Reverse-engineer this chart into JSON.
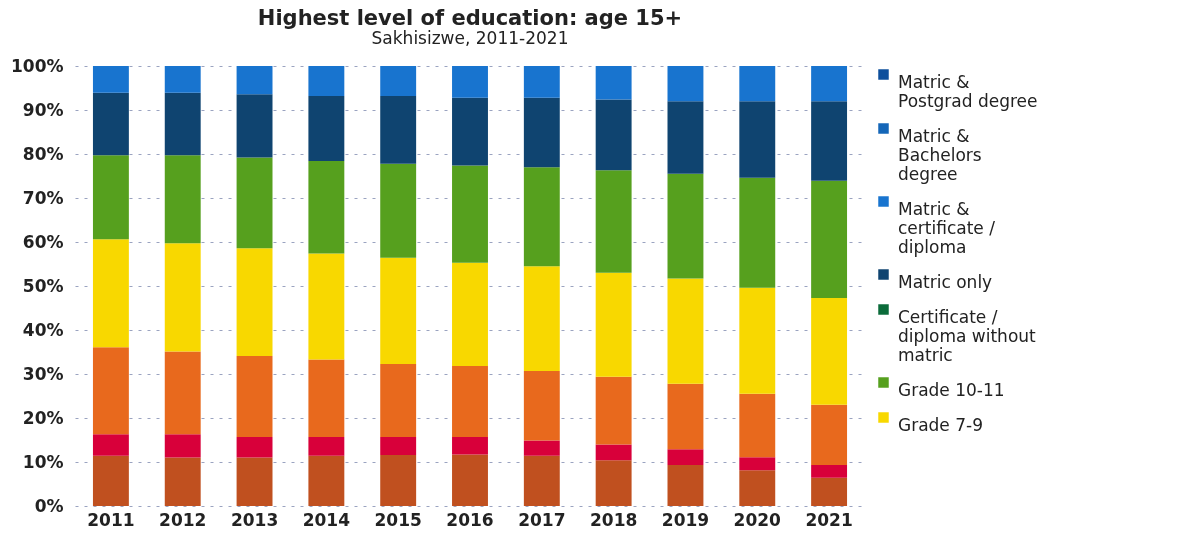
{
  "chart_data": {
    "type": "bar",
    "stacked": true,
    "title": "Highest level of education: age 15+",
    "subtitle": "Sakhisizwe, 2011-2021",
    "categories": [
      "2011",
      "2012",
      "2013",
      "2014",
      "2015",
      "2016",
      "2017",
      "2018",
      "2019",
      "2020",
      "2021"
    ],
    "series": [
      {
        "color": "#c0501f",
        "values": [
          11.4,
          11.0,
          11.0,
          11.4,
          11.6,
          11.7,
          11.4,
          10.4,
          9.3,
          8.1,
          6.4
        ]
      },
      {
        "color": "#d8003a",
        "values": [
          4.9,
          5.3,
          4.7,
          4.3,
          4.1,
          4.0,
          3.5,
          3.6,
          3.6,
          3.0,
          2.9
        ]
      },
      {
        "color": "#e8691d",
        "values": [
          19.8,
          18.8,
          18.4,
          17.6,
          16.6,
          16.1,
          15.8,
          15.4,
          14.9,
          14.4,
          13.7
        ]
      },
      {
        "name": "Grade 7-9",
        "color": "#f8d800",
        "values": [
          24.5,
          24.6,
          24.5,
          24.1,
          24.1,
          23.5,
          23.8,
          23.6,
          23.9,
          24.1,
          24.3
        ]
      },
      {
        "name": "Grade 10-11",
        "color": "#56a01e",
        "values": [
          19.1,
          20.0,
          20.6,
          21.0,
          21.4,
          22.1,
          22.5,
          23.3,
          23.8,
          25.0,
          26.6
        ]
      },
      {
        "name": "Certificate / diploma without matric",
        "color": "#0b6b3a",
        "values": [
          0,
          0,
          0,
          0,
          0,
          0,
          0,
          0,
          0,
          0,
          0
        ]
      },
      {
        "name": "Matric only",
        "color": "#0f4470",
        "values": [
          14.2,
          14.2,
          14.4,
          14.8,
          15.4,
          15.4,
          15.8,
          16.1,
          16.5,
          17.4,
          18.1
        ]
      },
      {
        "name": "Matric & certificate / diploma",
        "color": "#1874cf",
        "values": [
          6.1,
          6.1,
          6.4,
          6.8,
          6.8,
          7.2,
          7.2,
          7.6,
          8.0,
          8.0,
          8.0
        ]
      },
      {
        "name": "Matric & Bachelors degree",
        "color": "#1466b8",
        "values": [
          0,
          0,
          0,
          0,
          0,
          0,
          0,
          0,
          0,
          0,
          0
        ]
      },
      {
        "name": "Matric & Postgrad degree",
        "color": "#0d4f9c",
        "values": [
          0,
          0,
          0,
          0,
          0,
          0,
          0,
          0,
          0,
          0,
          0
        ]
      }
    ],
    "ylim": [
      0,
      100
    ],
    "yticks": [
      {
        "value": 0,
        "label": "0%"
      },
      {
        "value": 10,
        "label": "10%"
      },
      {
        "value": 20,
        "label": "20%"
      },
      {
        "value": 30,
        "label": "30%"
      },
      {
        "value": 40,
        "label": "40%"
      },
      {
        "value": 50,
        "label": "50%"
      },
      {
        "value": 60,
        "label": "60%"
      },
      {
        "value": 70,
        "label": "70%"
      },
      {
        "value": 80,
        "label": "80%"
      },
      {
        "value": 90,
        "label": "90%"
      },
      {
        "value": 100,
        "label": "100%"
      }
    ],
    "grid": "y",
    "legend": "right"
  }
}
